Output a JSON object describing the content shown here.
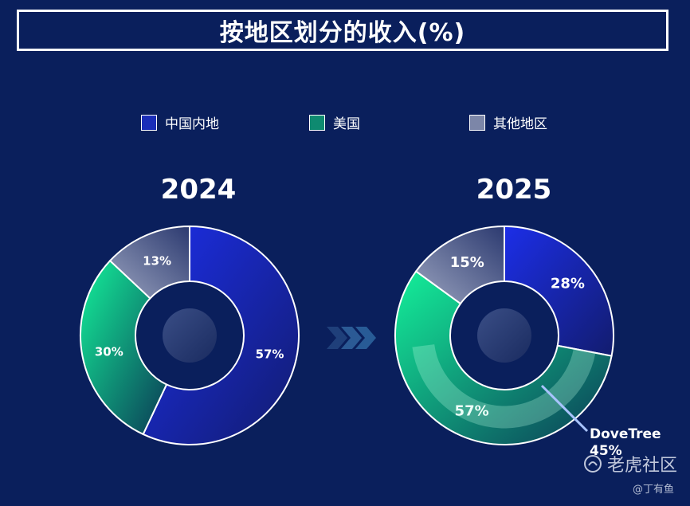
{
  "title": "按地区划分的收入(%)",
  "legend": [
    {
      "label": "中国内地",
      "color": "#1a2db8"
    },
    {
      "label": "美国",
      "color": "#0e8a70"
    },
    {
      "label": "其他地区",
      "color": "#7c86a8"
    }
  ],
  "chart_data": [
    {
      "type": "pie",
      "title": "2024",
      "categories": [
        "中国内地",
        "美国",
        "其他地区"
      ],
      "values": [
        57,
        30,
        13
      ],
      "labels": [
        "57%",
        "30%",
        "13%"
      ]
    },
    {
      "type": "pie",
      "title": "2025",
      "categories": [
        "中国内地",
        "美国",
        "其他地区"
      ],
      "values": [
        28,
        57,
        15
      ],
      "labels": [
        "28%",
        "57%",
        "15%"
      ],
      "annotation": {
        "name": "DoveTree",
        "value_label": "45%",
        "value": 45
      }
    }
  ],
  "watermark": {
    "logo_text": "老虎社区",
    "user": "@丁有鱼"
  }
}
